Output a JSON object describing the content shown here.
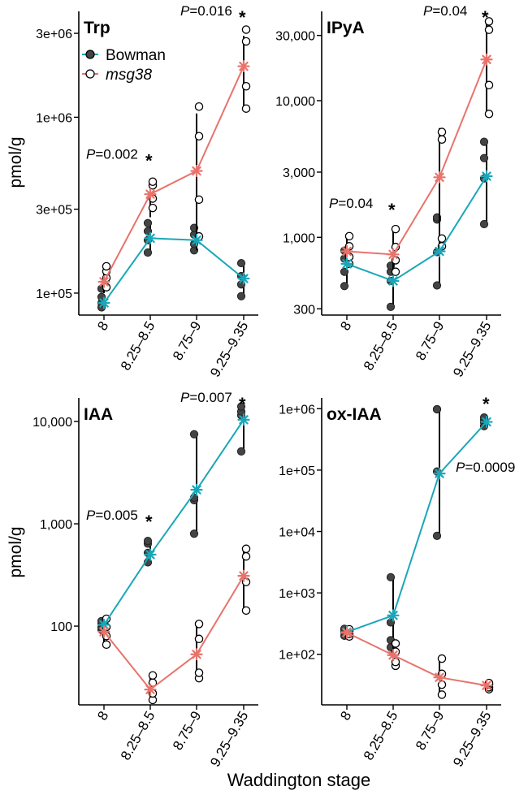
{
  "xlabel": "Waddington stage",
  "ylabel": "pmol/g",
  "legend": {
    "items": [
      {
        "name": "Bowman",
        "italic": false,
        "color": "#1aa7b8",
        "marker": "filled"
      },
      {
        "name": "msg38",
        "italic": true,
        "color": "#e8736b",
        "marker": "open"
      }
    ]
  },
  "colors": {
    "bowman": "#1aa7b8",
    "msg38": "#e8736b",
    "filled_point": "#444444"
  },
  "chart_data": [
    {
      "type": "line",
      "title": "Trp",
      "scale": "log",
      "categories": [
        "8",
        "8.25–8.5",
        "8.75–9",
        "9.25–9.35"
      ],
      "ylim": [
        75000,
        4000000
      ],
      "yticks": [
        100000,
        300000,
        1000000,
        3000000
      ],
      "ytick_labels": [
        "1e+05",
        "3e+05",
        "1e+06",
        "3e+06"
      ],
      "series": [
        {
          "name": "Bowman",
          "key": "bowman",
          "values": [
            88000,
            205000,
            200000,
            121000
          ],
          "err_lo": [
            80000,
            170000,
            175000,
            96000
          ],
          "err_hi": [
            98000,
            245000,
            230000,
            148000
          ],
          "points": [
            [
              83000,
              88000,
              95000,
              106000
            ],
            [
              170000,
              200000,
              225000,
              250000
            ],
            [
              175000,
              190000,
              215000,
              235000
            ],
            [
              96000,
              112000,
              125000,
              148000
            ]
          ]
        },
        {
          "name": "msg38",
          "key": "msg38",
          "values": [
            116000,
            365000,
            495000,
            1950000
          ],
          "err_lo": [
            100000,
            270000,
            175000,
            1150000
          ],
          "err_hi": [
            140000,
            440000,
            1050000,
            2900000
          ],
          "points": [
            [
              108000,
              122000,
              133000,
              142000
            ],
            [
              305000,
              345000,
              410000,
              430000
            ],
            [
              210000,
              340000,
              780000,
              1150000
            ],
            [
              1120000,
              1500000,
              2700000,
              3150000
            ]
          ]
        }
      ],
      "annotations": [
        {
          "text": "0.002",
          "category_index": 1,
          "anchor": "left"
        },
        {
          "text": "0.016",
          "category_index": 3,
          "anchor": "top"
        }
      ]
    },
    {
      "type": "line",
      "title": "IPyA",
      "scale": "log",
      "categories": [
        "8",
        "8.25–8.5",
        "8.75–9",
        "9.25–9.35"
      ],
      "ylim": [
        270,
        45000
      ],
      "yticks": [
        300,
        1000,
        3000,
        10000,
        30000
      ],
      "ytick_labels": [
        "300",
        "1,000",
        "3,000",
        "10,000",
        "30,000"
      ],
      "series": [
        {
          "name": "Bowman",
          "key": "bowman",
          "values": [
            640,
            480,
            790,
            2800
          ],
          "err_lo": [
            440,
            310,
            445,
            1250
          ],
          "err_hi": [
            920,
            690,
            6300,
            5000
          ],
          "points": [
            [
              440,
              560,
              700,
              800
            ],
            [
              310,
              480,
              560,
              620
            ],
            [
              445,
              780,
              1350,
              1400
            ],
            [
              1250,
              2700,
              3800,
              5000
            ]
          ]
        },
        {
          "name": "msg38",
          "key": "msg38",
          "values": [
            790,
            750,
            2750,
            20000
          ],
          "err_lo": [
            640,
            560,
            860,
            8000
          ],
          "err_hi": [
            1020,
            1150,
            5900,
            38000
          ],
          "points": [
            [
              640,
              720,
              860,
              1020
            ],
            [
              560,
              680,
              850,
              1150
            ],
            [
              860,
              980,
              5200,
              5900
            ],
            [
              8000,
              13000,
              33000,
              38000
            ]
          ]
        }
      ],
      "annotations": [
        {
          "text": "0.04",
          "category_index": 1,
          "anchor": "left"
        },
        {
          "text": "0.04",
          "category_index": 3,
          "anchor": "top"
        }
      ]
    },
    {
      "type": "line",
      "title": "IAA",
      "scale": "log",
      "categories": [
        "8",
        "8.25–8.5",
        "8.75–9",
        "9.25–9.35"
      ],
      "ylim": [
        17,
        17000
      ],
      "yticks": [
        100,
        1000,
        10000
      ],
      "ytick_labels": [
        "100",
        "1,000",
        "10,000"
      ],
      "series": [
        {
          "name": "Bowman",
          "key": "bowman",
          "values": [
            103,
            500,
            2150,
            10400
          ],
          "err_lo": [
            92,
            420,
            800,
            5100
          ],
          "err_hi": [
            112,
            680,
            7500,
            14000
          ],
          "points": [
            [
              92,
              97,
              106,
              112
            ],
            [
              420,
              520,
              640,
              680
            ],
            [
              800,
              1700,
              1800,
              7500
            ],
            [
              5100,
              11500,
              12500,
              14000
            ]
          ]
        },
        {
          "name": "msg38",
          "key": "msg38",
          "values": [
            88,
            24,
            53,
            310
          ],
          "err_lo": [
            66,
            19,
            31,
            142
          ],
          "err_hi": [
            118,
            33,
            105,
            570
          ],
          "points": [
            [
              66,
              80,
              98,
              118
            ],
            [
              19,
              22,
              28,
              33
            ],
            [
              31,
              35,
              75,
              105
            ],
            [
              142,
              270,
              480,
              570
            ]
          ]
        }
      ],
      "annotations": [
        {
          "text": "0.005",
          "category_index": 1,
          "anchor": "left"
        },
        {
          "text": "0.007",
          "category_index": 3,
          "anchor": "top"
        }
      ]
    },
    {
      "type": "line",
      "title": "ox-IAA",
      "scale": "log",
      "categories": [
        "8",
        "8.25–8.5",
        "8.75–9",
        "9.25–9.35"
      ],
      "ylim": [
        15,
        1500000
      ],
      "yticks": [
        100,
        1000,
        10000,
        100000,
        1000000
      ],
      "ytick_labels": [
        "1e+02",
        "1e+03",
        "1e+04",
        "1e+05",
        "1e+06"
      ],
      "series": [
        {
          "name": "Bowman",
          "key": "bowman",
          "values": [
            230,
            430,
            88000,
            610000
          ],
          "err_lo": [
            200,
            130,
            8500,
            520000
          ],
          "err_hi": [
            260,
            1800,
            980000,
            720000
          ],
          "points": [
            [
              200,
              230,
              250,
              260
            ],
            [
              130,
              170,
              330,
              1800
            ],
            [
              8500,
              95000,
              980000,
              980000
            ],
            [
              520000,
              600000,
              650000,
              720000
            ]
          ]
        },
        {
          "name": "msg38",
          "key": "msg38",
          "values": [
            225,
            97,
            42,
            31
          ],
          "err_lo": [
            195,
            65,
            22,
            27
          ],
          "err_hi": [
            255,
            150,
            85,
            34
          ],
          "points": [
            [
              195,
              215,
              240,
              255
            ],
            [
              65,
              75,
              110,
              150
            ],
            [
              22,
              32,
              48,
              85
            ],
            [
              27,
              29,
              32,
              34
            ]
          ]
        }
      ],
      "annotations": [
        {
          "text": "0.0009",
          "category_index": 2,
          "anchor": "right"
        },
        {
          "text": "",
          "category_index": 3,
          "anchor": "top"
        }
      ]
    }
  ]
}
